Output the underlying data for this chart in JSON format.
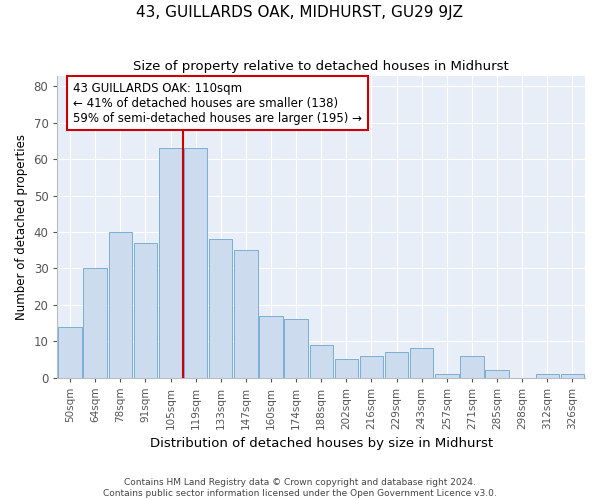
{
  "title": "43, GUILLARDS OAK, MIDHURST, GU29 9JZ",
  "subtitle": "Size of property relative to detached houses in Midhurst",
  "xlabel": "Distribution of detached houses by size in Midhurst",
  "ylabel": "Number of detached properties",
  "bar_labels": [
    "50sqm",
    "64sqm",
    "78sqm",
    "91sqm",
    "105sqm",
    "119sqm",
    "133sqm",
    "147sqm",
    "160sqm",
    "174sqm",
    "188sqm",
    "202sqm",
    "216sqm",
    "229sqm",
    "243sqm",
    "257sqm",
    "271sqm",
    "285sqm",
    "298sqm",
    "312sqm",
    "326sqm"
  ],
  "bar_values": [
    14,
    30,
    40,
    37,
    63,
    63,
    38,
    35,
    17,
    16,
    9,
    5,
    6,
    7,
    8,
    1,
    6,
    2,
    0,
    1,
    1
  ],
  "bar_color": "#ccdcee",
  "bar_edge_color": "#7aaed4",
  "property_line_x": 4.5,
  "annotation_text": "43 GUILLARDS OAK: 110sqm\n← 41% of detached houses are smaller (138)\n59% of semi-detached houses are larger (195) →",
  "annotation_box_color": "#ffffff",
  "annotation_box_edge": "#cc0000",
  "vline_color": "#cc0000",
  "ylim": [
    0,
    83
  ],
  "yticks": [
    0,
    10,
    20,
    30,
    40,
    50,
    60,
    70,
    80
  ],
  "background_color": "#e8eef8",
  "grid_color": "#ffffff",
  "fig_bg": "#ffffff",
  "footer1": "Contains HM Land Registry data © Crown copyright and database right 2024.",
  "footer2": "Contains public sector information licensed under the Open Government Licence v3.0."
}
